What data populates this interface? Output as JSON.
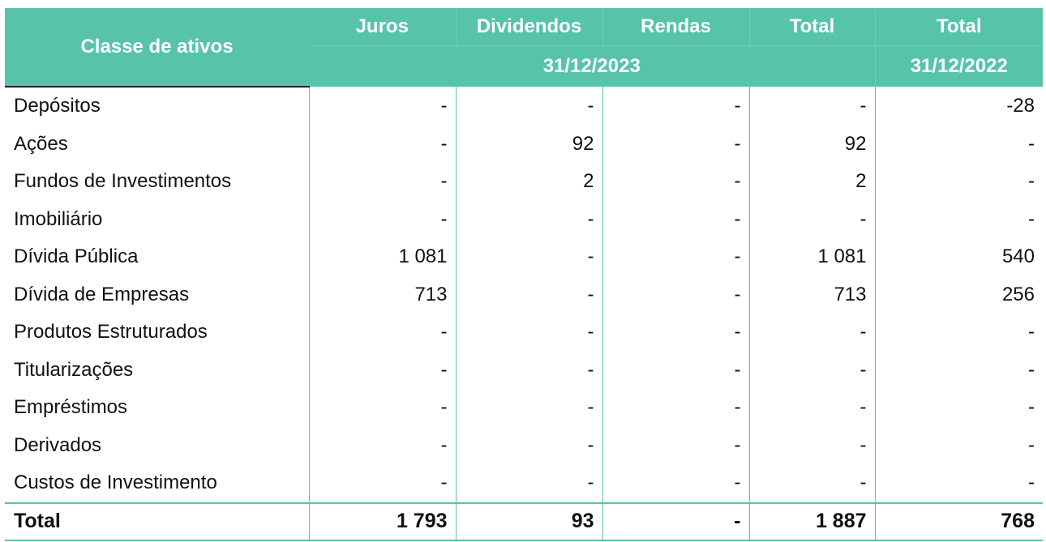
{
  "header": {
    "asset_class_label": "Classe de ativos",
    "columns": [
      "Juros",
      "Dividendos",
      "Rendas",
      "Total",
      "Total"
    ],
    "period_2023": "31/12/2023",
    "period_2022": "31/12/2022"
  },
  "rows": [
    {
      "name": "Depósitos",
      "juros": "-",
      "dividendos": "-",
      "rendas": "-",
      "total_2023": "-",
      "total_2022": "-28"
    },
    {
      "name": "Ações",
      "juros": "-",
      "dividendos": "92",
      "rendas": "-",
      "total_2023": "92",
      "total_2022": "-"
    },
    {
      "name": "Fundos de Investimentos",
      "juros": "-",
      "dividendos": "2",
      "rendas": "-",
      "total_2023": "2",
      "total_2022": "-"
    },
    {
      "name": "Imobiliário",
      "juros": "-",
      "dividendos": "-",
      "rendas": "-",
      "total_2023": "-",
      "total_2022": "-"
    },
    {
      "name": "Dívida Pública",
      "juros": "1 081",
      "dividendos": "-",
      "rendas": "-",
      "total_2023": "1 081",
      "total_2022": "540"
    },
    {
      "name": "Dívida de Empresas",
      "juros": "713",
      "dividendos": "-",
      "rendas": "-",
      "total_2023": "713",
      "total_2022": "256"
    },
    {
      "name": "Produtos Estruturados",
      "juros": "-",
      "dividendos": "-",
      "rendas": "-",
      "total_2023": "-",
      "total_2022": "-"
    },
    {
      "name": "Titularizações",
      "juros": "-",
      "dividendos": "-",
      "rendas": "-",
      "total_2023": "-",
      "total_2022": "-"
    },
    {
      "name": "Empréstimos",
      "juros": "-",
      "dividendos": "-",
      "rendas": "-",
      "total_2023": "-",
      "total_2022": "-"
    },
    {
      "name": "Derivados",
      "juros": "-",
      "dividendos": "-",
      "rendas": "-",
      "total_2023": "-",
      "total_2022": "-"
    },
    {
      "name": "Custos de Investimento",
      "juros": "-",
      "dividendos": "-",
      "rendas": "-",
      "total_2023": "-",
      "total_2022": "-"
    }
  ],
  "totals": {
    "name": "Total",
    "juros": "1 793",
    "dividendos": "93",
    "rendas": "-",
    "total_2023": "1 887",
    "total_2022": "768"
  },
  "colors": {
    "header_bg": "#57c4aa",
    "header_text": "#ffffff",
    "grid_line": "#57c4aa"
  }
}
